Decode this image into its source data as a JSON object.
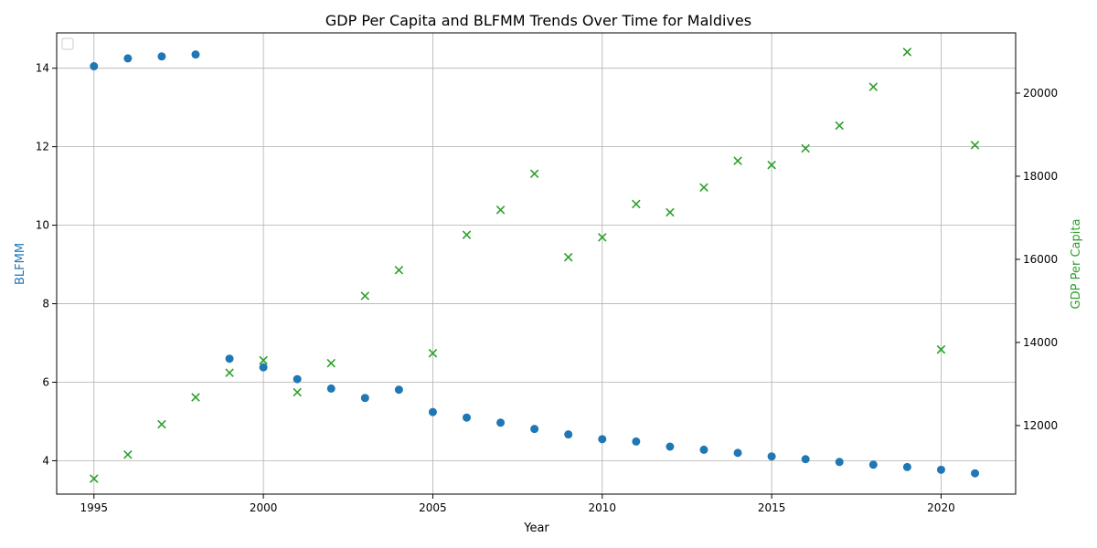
{
  "chart_data": {
    "type": "scatter",
    "title": "GDP Per Capita and BLFMM Trends Over Time for Maldives",
    "xlabel": "Year",
    "ylabel_left": "BLFMM",
    "ylabel_right": "GDP Per Capita",
    "x_ticks": [
      1995,
      2000,
      2005,
      2010,
      2015,
      2020
    ],
    "y_left_ticks": [
      4,
      6,
      8,
      10,
      12,
      14
    ],
    "y_right_ticks": [
      12000,
      14000,
      16000,
      18000,
      20000
    ],
    "xlim": [
      1993.9,
      2022.2
    ],
    "ylim_left": [
      3.15,
      14.9
    ],
    "ylim_right": [
      10350,
      21450
    ],
    "grid": true,
    "legend": "top-left",
    "colors": {
      "blfmm": "#1f77b4",
      "gdp": "#2ca02c"
    },
    "series": [
      {
        "marker": "circle",
        "axis": "left",
        "x": [
          1995,
          1996,
          1997,
          1998,
          1999,
          2000,
          2001,
          2002,
          2003,
          2004,
          2005,
          2006,
          2007,
          2008,
          2009,
          2010,
          2011,
          2012,
          2013,
          2014,
          2015,
          2016,
          2017,
          2018,
          2019,
          2020,
          2021
        ],
        "values": [
          14.05,
          14.25,
          14.3,
          14.35,
          6.6,
          6.38,
          6.08,
          5.84,
          5.6,
          5.81,
          5.24,
          5.1,
          4.97,
          4.81,
          4.67,
          4.55,
          4.49,
          4.36,
          4.28,
          4.2,
          4.11,
          4.04,
          3.97,
          3.9,
          3.84,
          3.77,
          3.68
        ]
      },
      {
        "marker": "x",
        "axis": "right",
        "x": [
          1995,
          1996,
          1997,
          1998,
          1999,
          2000,
          2001,
          2002,
          2003,
          2004,
          2005,
          2006,
          2007,
          2008,
          2009,
          2010,
          2011,
          2012,
          2013,
          2014,
          2015,
          2016,
          2017,
          2018,
          2019,
          2020,
          2021
        ],
        "values": [
          10720,
          11300,
          12030,
          12680,
          13270,
          13570,
          12800,
          13500,
          15120,
          15740,
          13740,
          16590,
          17190,
          18060,
          16050,
          16530,
          17330,
          17130,
          17730,
          18370,
          18270,
          18670,
          19220,
          20150,
          20990,
          13830,
          18750
        ]
      }
    ]
  }
}
